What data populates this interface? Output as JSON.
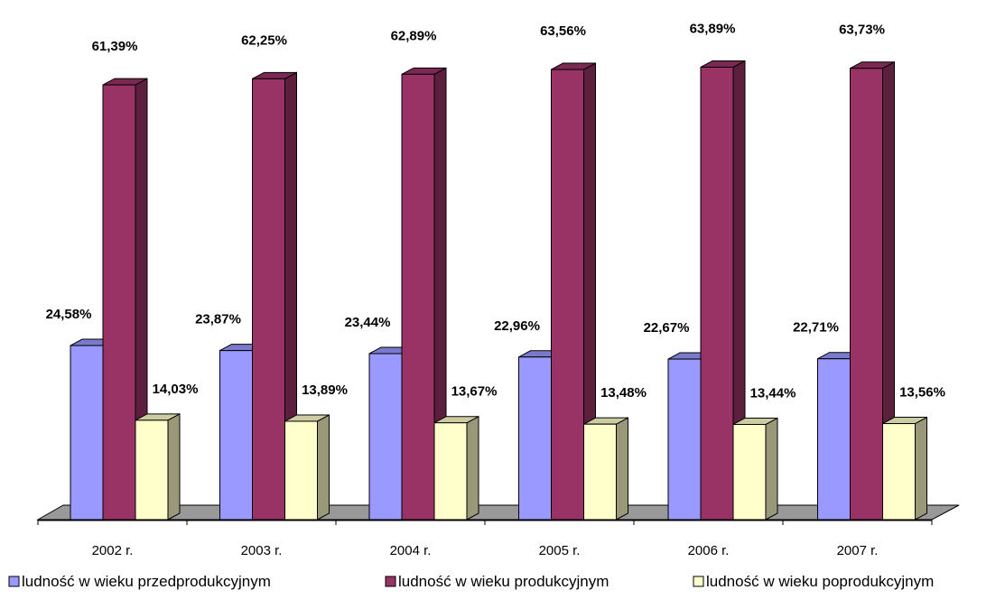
{
  "chart_data": {
    "type": "bar",
    "subtype": "3d-clustered-column",
    "categories": [
      "2002 r.",
      "2003 r.",
      "2004 r.",
      "2005 r.",
      "2006 r.",
      "2007 r."
    ],
    "series": [
      {
        "name": "ludność w wieku przedprodukcyjnym",
        "values": [
          24.58,
          23.87,
          23.44,
          22.96,
          22.67,
          22.71
        ],
        "labels": [
          "24,58%",
          "23,87%",
          "23,44%",
          "22,96%",
          "22,67%",
          "22,71%"
        ],
        "color": "#9999ff"
      },
      {
        "name": "ludność w wieku produkcyjnym",
        "values": [
          61.39,
          62.25,
          62.89,
          63.56,
          63.89,
          63.73
        ],
        "labels": [
          "61,39%",
          "62,25%",
          "62,89%",
          "63,56%",
          "63,89%",
          "63,73%"
        ],
        "color": "#993366"
      },
      {
        "name": "ludność w wieku poprodukcyjnym",
        "values": [
          14.03,
          13.89,
          13.67,
          13.48,
          13.44,
          13.56
        ],
        "labels": [
          "14,03%",
          "13,89%",
          "13,67%",
          "13,48%",
          "13,44%",
          "13,56%"
        ],
        "color": "#ffffcc"
      }
    ],
    "ylim": [
      0,
      70
    ],
    "legend_position": "bottom",
    "grid": false,
    "floor_color": "#999999"
  }
}
